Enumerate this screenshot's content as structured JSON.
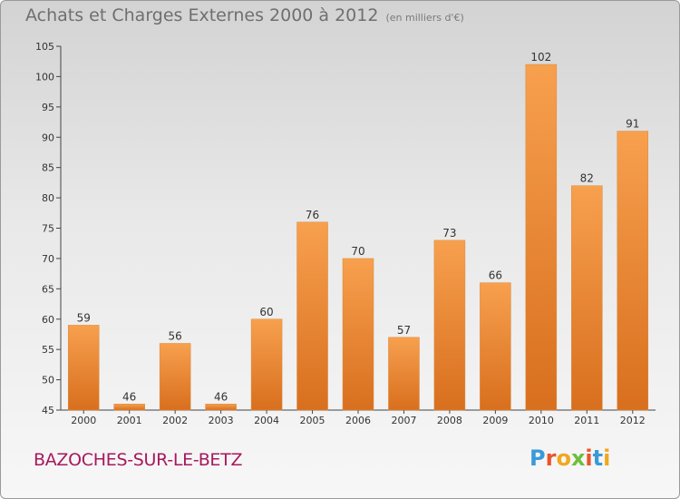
{
  "header": {
    "title": "Achats et Charges Externes 2000 à 2012",
    "unit": "(en milliers d'€)"
  },
  "footer": {
    "town": "BAZOCHES-SUR-LE-BETZ",
    "logo_text": "Proxiti"
  },
  "colors": {
    "bar_top": "#f7a04e",
    "bar_bottom": "#d86f1e",
    "town_text": "#a6195d",
    "title_text": "#6f6f6f"
  },
  "chart_data": {
    "type": "bar",
    "title": "Achats et Charges Externes 2000 à 2012",
    "subtitle": "(en milliers d'€)",
    "xlabel": "",
    "ylabel": "",
    "categories": [
      "2000",
      "2001",
      "2002",
      "2003",
      "2004",
      "2005",
      "2006",
      "2007",
      "2008",
      "2009",
      "2010",
      "2011",
      "2012"
    ],
    "values": [
      59,
      46,
      56,
      46,
      60,
      76,
      70,
      57,
      73,
      66,
      102,
      82,
      91
    ],
    "ylim": [
      45,
      105
    ],
    "yticks": [
      45,
      50,
      55,
      60,
      65,
      70,
      75,
      80,
      85,
      90,
      95,
      100,
      105
    ],
    "grid": false,
    "data_labels": true
  }
}
